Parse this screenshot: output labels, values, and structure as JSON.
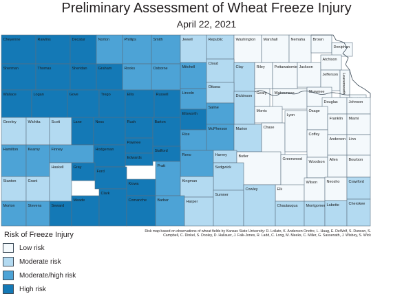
{
  "title": "Preliminary Assessment of Wheat Freeze Injury",
  "subtitle": "April 22, 2021",
  "legend": {
    "title": "Risk of Freeze Injury",
    "items": [
      {
        "label": "Low risk",
        "color": "#f4f9fc"
      },
      {
        "label": "Moderate risk",
        "color": "#b3daf1"
      },
      {
        "label": "Moderate/high risk",
        "color": "#4da3d6"
      },
      {
        "label": "High risk",
        "color": "#1479b6"
      }
    ]
  },
  "credit": "Risk map based on observations of wheat fields by Kansas State University: R. Lollato, K. Andersen Onofre, L. Haag, E. DeWolf, S. Duncan, S. Campbell, C. Dinkel, S. Dooley, D. Hallauer, J. Falk-Jones, R. Ladd, C. Long, M. Meeks, C. Miller, G. Sassenath, J. Wisbey, S. Wick",
  "counties": [
    {
      "name": "Cheyenne",
      "risk": "high"
    },
    {
      "name": "Rawlins",
      "risk": "high"
    },
    {
      "name": "Decatur",
      "risk": "high"
    },
    {
      "name": "Norton",
      "risk": "modhigh"
    },
    {
      "name": "Phillips",
      "risk": "modhigh"
    },
    {
      "name": "Smith",
      "risk": "modhigh"
    },
    {
      "name": "Jewell",
      "risk": "moderate"
    },
    {
      "name": "Republic",
      "risk": "moderate"
    },
    {
      "name": "Washington",
      "risk": "low"
    },
    {
      "name": "Marshall",
      "risk": "low"
    },
    {
      "name": "Nemaha",
      "risk": "low"
    },
    {
      "name": "Brown",
      "risk": "low"
    },
    {
      "name": "Doniphan",
      "risk": "low"
    },
    {
      "name": "Sherman",
      "risk": "high"
    },
    {
      "name": "Thomas",
      "risk": "high"
    },
    {
      "name": "Sheridan",
      "risk": "high"
    },
    {
      "name": "Graham",
      "risk": "high"
    },
    {
      "name": "Rooks",
      "risk": "modhigh"
    },
    {
      "name": "Osborne",
      "risk": "modhigh"
    },
    {
      "name": "Mitchell",
      "risk": "modhigh"
    },
    {
      "name": "Cloud",
      "risk": "moderate"
    },
    {
      "name": "Clay",
      "risk": "moderate"
    },
    {
      "name": "Riley",
      "risk": "low"
    },
    {
      "name": "Pottawatomie",
      "risk": "low"
    },
    {
      "name": "Jackson",
      "risk": "low"
    },
    {
      "name": "Atchison",
      "risk": "low"
    },
    {
      "name": "Jefferson",
      "risk": "low"
    },
    {
      "name": "Leavenworth",
      "risk": "low"
    },
    {
      "name": "Wyandotte",
      "risk": "low"
    },
    {
      "name": "Wallace",
      "risk": "high"
    },
    {
      "name": "Logan",
      "risk": "high"
    },
    {
      "name": "Gove",
      "risk": "high"
    },
    {
      "name": "Trego",
      "risk": "high"
    },
    {
      "name": "Ellis",
      "risk": "high"
    },
    {
      "name": "Russell",
      "risk": "high"
    },
    {
      "name": "Lincoln",
      "risk": "modhigh"
    },
    {
      "name": "Ottawa",
      "risk": "moderate"
    },
    {
      "name": "Dickinson",
      "risk": "moderate"
    },
    {
      "name": "Geary",
      "risk": "low"
    },
    {
      "name": "Wabaunsee",
      "risk": "low"
    },
    {
      "name": "Shawnee",
      "risk": "low"
    },
    {
      "name": "Douglas",
      "risk": "low"
    },
    {
      "name": "Johnson",
      "risk": "low"
    },
    {
      "name": "Ellsworth",
      "risk": "high"
    },
    {
      "name": "Saline",
      "risk": "modhigh"
    },
    {
      "name": "Morris",
      "risk": "low"
    },
    {
      "name": "Osage",
      "risk": "low"
    },
    {
      "name": "Greeley",
      "risk": "moderate"
    },
    {
      "name": "Wichita",
      "risk": "moderate"
    },
    {
      "name": "Scott",
      "risk": "moderate"
    },
    {
      "name": "Lane",
      "risk": "high"
    },
    {
      "name": "Ness",
      "risk": "high"
    },
    {
      "name": "Rush",
      "risk": "high"
    },
    {
      "name": "Barton",
      "risk": "high"
    },
    {
      "name": "Rice",
      "risk": "modhigh"
    },
    {
      "name": "McPherson",
      "risk": "modhigh"
    },
    {
      "name": "Marion",
      "risk": "moderate"
    },
    {
      "name": "Chase",
      "risk": "low"
    },
    {
      "name": "Lyon",
      "risk": "low"
    },
    {
      "name": "Franklin",
      "risk": "low"
    },
    {
      "name": "Miami",
      "risk": "low"
    },
    {
      "name": "Coffey",
      "risk": "low"
    },
    {
      "name": "Anderson",
      "risk": "low"
    },
    {
      "name": "Linn",
      "risk": "low"
    },
    {
      "name": "Pawnee",
      "risk": "high"
    },
    {
      "name": "Stafford",
      "risk": "high"
    },
    {
      "name": "Edwards",
      "risk": "high"
    },
    {
      "name": "Hamilton",
      "risk": "modhigh"
    },
    {
      "name": "Kearny",
      "risk": "modhigh"
    },
    {
      "name": "Finney",
      "risk": "modhigh"
    },
    {
      "name": "Hodgeman",
      "risk": "high"
    },
    {
      "name": "Reno",
      "risk": "modhigh"
    },
    {
      "name": "Harvey",
      "risk": "moderate"
    },
    {
      "name": "Butler",
      "risk": "low"
    },
    {
      "name": "Greenwood",
      "risk": "low"
    },
    {
      "name": "Woodson",
      "risk": "low"
    },
    {
      "name": "Allen",
      "risk": "low"
    },
    {
      "name": "Bourbon",
      "risk": "low"
    },
    {
      "name": "Gray",
      "risk": "high"
    },
    {
      "name": "Ford",
      "risk": "high"
    },
    {
      "name": "Sedgwick",
      "risk": "moderate"
    },
    {
      "name": "Stanton",
      "risk": "moderate"
    },
    {
      "name": "Grant",
      "risk": "moderate"
    },
    {
      "name": "Haskell",
      "risk": "moderate"
    },
    {
      "name": "Kiowa",
      "risk": "high"
    },
    {
      "name": "Pratt",
      "risk": "modhigh"
    },
    {
      "name": "Kingman",
      "risk": "moderate"
    },
    {
      "name": "Elk",
      "risk": "low"
    },
    {
      "name": "Wilson",
      "risk": "low"
    },
    {
      "name": "Neosho",
      "risk": "low"
    },
    {
      "name": "Crawford",
      "risk": "moderate"
    },
    {
      "name": "Morton",
      "risk": "modhigh"
    },
    {
      "name": "Stevens",
      "risk": "modhigh"
    },
    {
      "name": "Seward",
      "risk": "high"
    },
    {
      "name": "Meade",
      "risk": "high"
    },
    {
      "name": "Clark",
      "risk": "high"
    },
    {
      "name": "Comanche",
      "risk": "high"
    },
    {
      "name": "Barber",
      "risk": "modhigh"
    },
    {
      "name": "Harper",
      "risk": "moderate"
    },
    {
      "name": "Sumner",
      "risk": "moderate"
    },
    {
      "name": "Cowley",
      "risk": "moderate"
    },
    {
      "name": "Chautauqua",
      "risk": "moderate"
    },
    {
      "name": "Montgomery",
      "risk": "moderate"
    },
    {
      "name": "Labette",
      "risk": "moderate"
    },
    {
      "name": "Cherokee",
      "risk": "moderate"
    }
  ]
}
